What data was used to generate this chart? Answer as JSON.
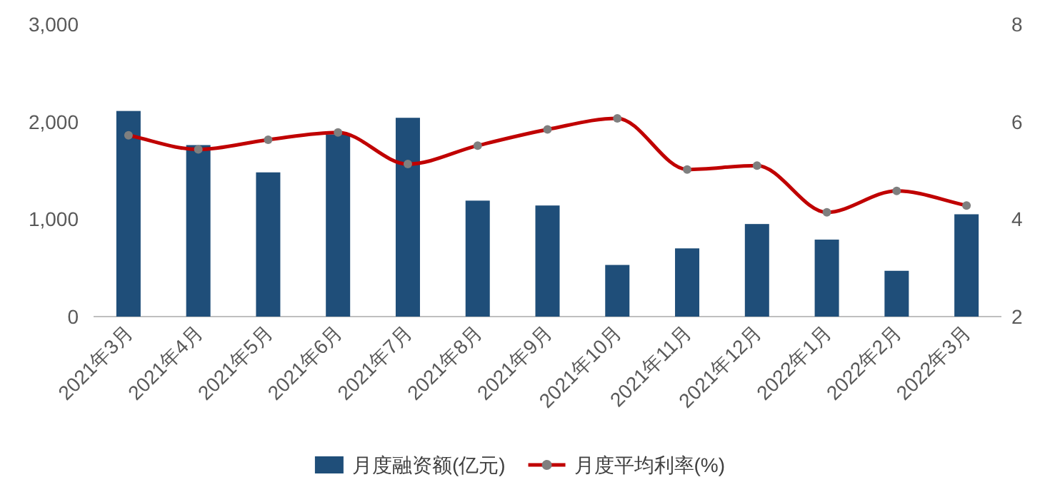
{
  "chart_data": {
    "type": "bar",
    "categories": [
      "2021年3月",
      "2021年4月",
      "2021年5月",
      "2021年6月",
      "2021年7月",
      "2021年8月",
      "2021年9月",
      "2021年10月",
      "2021年11月",
      "2021年12月",
      "2022年1月",
      "2022年2月",
      "2022年3月"
    ],
    "series": [
      {
        "name": "月度融资额(亿元)",
        "color": "#1f4e79",
        "values": [
          2110,
          1760,
          1480,
          1870,
          2040,
          1190,
          1140,
          530,
          700,
          950,
          790,
          470,
          1050
        ]
      },
      {
        "name": "月度平均利率(%)",
        "type": "line",
        "axis": "y2",
        "color": "#c00000",
        "marker": "circle",
        "values": [
          5.72,
          5.43,
          5.63,
          5.78,
          5.13,
          5.51,
          5.84,
          6.07,
          5.02,
          5.1,
          4.14,
          4.58,
          4.28
        ]
      }
    ],
    "ylim": [
      0,
      3000
    ],
    "yticks": [
      0,
      {
        "value": 1000,
        "label": "1,000"
      },
      {
        "value": 2000,
        "label": "2,000"
      },
      {
        "value": 3000,
        "label": "3,000"
      }
    ],
    "y2lim": [
      2,
      8
    ],
    "y2ticks": [
      2,
      4,
      6,
      8
    ],
    "legend": "bottom",
    "grid": false
  }
}
